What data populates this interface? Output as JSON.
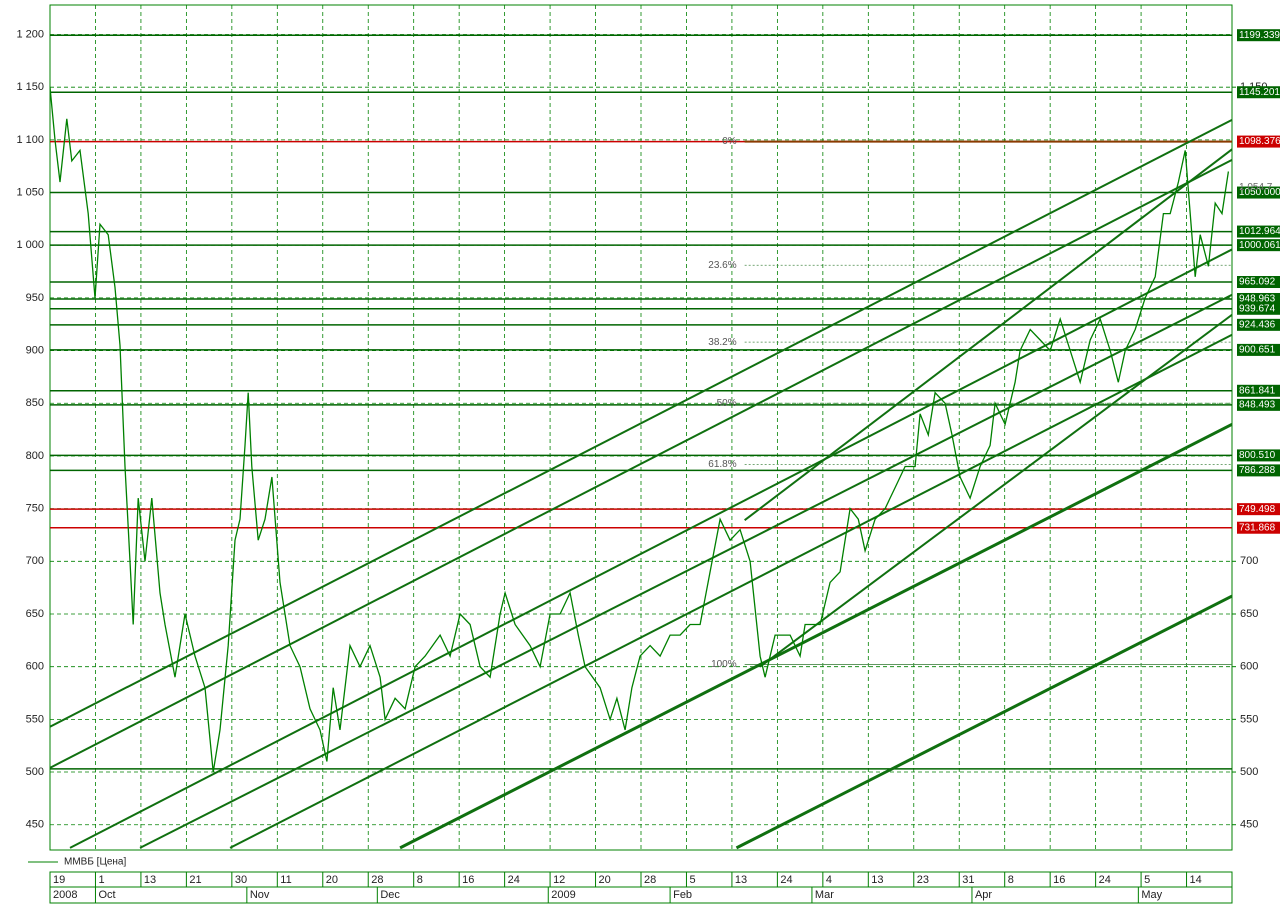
{
  "chart_data": {
    "type": "line",
    "series": [
      {
        "name": "ММВБ [Цена]",
        "color": "#008000",
        "x": [
          0,
          0.11,
          0.22,
          0.37,
          0.48,
          0.66,
          0.84,
          0.99,
          1.1,
          1.28,
          1.43,
          1.54,
          1.65,
          1.76,
          1.83,
          1.94,
          2.09,
          2.24,
          2.42,
          2.53,
          2.75,
          2.97,
          3.19,
          3.41,
          3.59,
          3.74,
          3.92,
          4.07,
          4.18,
          4.29,
          4.36,
          4.44,
          4.58,
          4.73,
          4.88,
          5.06,
          5.28,
          5.5,
          5.72,
          5.94,
          6.09,
          6.23,
          6.38,
          6.6,
          6.82,
          7.04,
          7.26,
          7.37,
          7.59,
          7.81,
          8.03,
          8.25,
          8.58,
          8.8,
          9.02,
          9.24,
          9.46,
          9.68,
          9.9,
          10.01,
          10.23,
          10.56,
          10.78,
          11,
          11.22,
          11.44,
          11.62,
          11.77,
          12.1,
          12.32,
          12.47,
          12.65,
          12.8,
          12.98,
          13.2,
          13.42,
          13.64,
          13.86,
          14.08,
          14.3,
          14.52,
          14.74,
          14.96,
          15.18,
          15.4,
          15.62,
          15.73,
          15.95,
          16.28,
          16.5,
          16.61,
          16.94,
          17.16,
          17.38,
          17.6,
          17.78,
          17.93,
          18.15,
          18.37,
          18.59,
          18.81,
          19.03,
          19.14,
          19.32,
          19.47,
          19.69,
          19.84,
          20.02,
          20.24,
          20.46,
          20.68,
          20.79,
          21.01,
          21.23,
          21.34,
          21.56,
          21.78,
          22,
          22.22,
          22.44,
          22.66,
          22.88,
          23.1,
          23.32,
          23.5,
          23.65,
          23.87,
          24.09,
          24.31,
          24.49,
          24.64,
          24.82,
          24.97,
          25.08,
          25.19,
          25.3,
          25.48,
          25.63,
          25.78,
          25.92
        ],
        "values": [
          1150,
          1100,
          1060,
          1120,
          1080,
          1090,
          1030,
          950,
          1020,
          1010,
          960,
          905,
          790,
          700,
          640,
          760,
          700,
          760,
          670,
          640,
          590,
          650,
          610,
          580,
          500,
          540,
          620,
          720,
          740,
          810,
          860,
          790,
          720,
          740,
          780,
          680,
          620,
          600,
          560,
          540,
          510,
          580,
          540,
          620,
          600,
          620,
          590,
          550,
          570,
          560,
          600,
          610,
          630,
          610,
          650,
          640,
          600,
          590,
          650,
          670,
          640,
          620,
          600,
          650,
          650,
          670,
          630,
          600,
          580,
          550,
          570,
          540,
          580,
          610,
          620,
          610,
          630,
          630,
          640,
          640,
          690,
          740,
          720,
          730,
          700,
          610,
          590,
          630,
          630,
          610,
          640,
          640,
          680,
          690,
          750,
          740,
          710,
          740,
          750,
          770,
          790,
          790,
          840,
          820,
          860,
          850,
          820,
          780,
          760,
          790,
          810,
          850,
          830,
          870,
          900,
          920,
          910,
          900,
          930,
          900,
          870,
          910,
          930,
          900,
          870,
          900,
          920,
          950,
          970,
          1030,
          1030,
          1060,
          1090,
          1030,
          970,
          1010,
          980,
          1040,
          1030,
          1070
        ]
      }
    ],
    "xlim": [
      0,
      26
    ],
    "ylim": [
      426,
      1228
    ],
    "xticks": [
      {
        "value": 0,
        "label": "19"
      },
      {
        "value": 1,
        "label": "1"
      },
      {
        "value": 2,
        "label": "13"
      },
      {
        "value": 3,
        "label": "21"
      },
      {
        "value": 4,
        "label": "30"
      },
      {
        "value": 5,
        "label": "11"
      },
      {
        "value": 6,
        "label": "20"
      },
      {
        "value": 7,
        "label": "28"
      },
      {
        "value": 8,
        "label": "8"
      },
      {
        "value": 9,
        "label": "16"
      },
      {
        "value": 10,
        "label": "24"
      },
      {
        "value": 11,
        "label": "12"
      },
      {
        "value": 12,
        "label": "20"
      },
      {
        "value": 13,
        "label": "28"
      },
      {
        "value": 14,
        "label": "5"
      },
      {
        "value": 15,
        "label": "13"
      },
      {
        "value": 16,
        "label": "24"
      },
      {
        "value": 17,
        "label": "4"
      },
      {
        "value": 18,
        "label": "13"
      },
      {
        "value": 19,
        "label": "23"
      },
      {
        "value": 20,
        "label": "31"
      },
      {
        "value": 21,
        "label": "8"
      },
      {
        "value": 22,
        "label": "16"
      },
      {
        "value": 23,
        "label": "24"
      },
      {
        "value": 24,
        "label": "5"
      },
      {
        "value": 25,
        "label": "14"
      }
    ],
    "month_ticks": [
      {
        "value": 0,
        "label": "2008"
      },
      {
        "value": 1,
        "label": "Oct"
      },
      {
        "value": 4.33,
        "label": "Nov"
      },
      {
        "value": 7.2,
        "label": "Dec"
      },
      {
        "value": 10.96,
        "label": "2009"
      },
      {
        "value": 13.64,
        "label": "Feb"
      },
      {
        "value": 16.76,
        "label": "Mar"
      },
      {
        "value": 20.28,
        "label": "Apr"
      },
      {
        "value": 23.94,
        "label": "May"
      }
    ],
    "yticks": [
      450,
      500,
      550,
      600,
      650,
      700,
      750,
      800,
      850,
      900,
      950,
      {
        "value": 1000,
        "label": "1 000"
      },
      {
        "value": 1050,
        "label": "1 050"
      },
      {
        "value": 1100,
        "label": "1 100"
      },
      {
        "value": 1150,
        "label": "1 150"
      },
      {
        "value": 1200,
        "label": "1 200"
      }
    ],
    "y2ticks": [
      450,
      500,
      550,
      600,
      650,
      700,
      {
        "value": 1150,
        "label": "1 150"
      }
    ],
    "grid": true,
    "levels": [
      {
        "value": 1199.339,
        "label": "1199.339",
        "color": "#006400"
      },
      {
        "value": 1145.201,
        "label": "1145.201",
        "color": "#006400"
      },
      {
        "value": 1098.376,
        "label": "1098.376",
        "color": "#cc0000"
      },
      {
        "value": 1050,
        "label": "1050.000",
        "color": "#006400"
      },
      {
        "value": 1012.964,
        "label": "1012.964",
        "color": "#006400"
      },
      {
        "value": 1000.061,
        "label": "1000.061",
        "color": "#006400"
      },
      {
        "value": 965.092,
        "label": "965.092",
        "color": "#006400"
      },
      {
        "value": 948.963,
        "label": "948.963",
        "color": "#006400"
      },
      {
        "value": 939.674,
        "label": "939.674",
        "color": "#006400"
      },
      {
        "value": 924.436,
        "label": "924.436",
        "color": "#006400"
      },
      {
        "value": 900.651,
        "label": "900.651",
        "color": "#006400"
      },
      {
        "value": 861.841,
        "label": "861.841",
        "color": "#006400"
      },
      {
        "value": 848.493,
        "label": "848.493",
        "color": "#006400"
      },
      {
        "value": 800.51,
        "label": "800.510",
        "color": "#006400"
      },
      {
        "value": 786.288,
        "label": "786.288",
        "color": "#006400"
      },
      {
        "value": 749.498,
        "label": "749.498",
        "color": "#cc0000"
      },
      {
        "value": 731.868,
        "label": "731.868",
        "color": "#cc0000"
      }
    ],
    "last_price": {
      "value": 1054.7,
      "label": "1 054.7"
    },
    "plain_levels": [
      503
    ],
    "fib_start": 15.28,
    "fib_levels": [
      {
        "label": "0%",
        "value": 1098.376
      },
      {
        "label": "23.6%",
        "value": 981
      },
      {
        "label": "38.2%",
        "value": 908
      },
      {
        "label": "50%",
        "value": 850
      },
      {
        "label": "61.8%",
        "value": 792
      },
      {
        "label": "100%",
        "value": 602
      }
    ],
    "trend_lines": [
      {
        "x": [
          0,
          26
        ],
        "values": [
          543,
          1119
        ]
      },
      {
        "x": [
          0,
          26
        ],
        "values": [
          504,
          1081
        ]
      },
      {
        "x": [
          0.44,
          26
        ],
        "values": [
          428,
          996
        ]
      },
      {
        "x": [
          1.98,
          26
        ],
        "values": [
          428,
          953
        ]
      },
      {
        "x": [
          3.96,
          26
        ],
        "values": [
          428,
          915
        ]
      },
      {
        "x": [
          7.7,
          26
        ],
        "values": [
          428,
          830
        ]
      },
      {
        "x": [
          15.1,
          26
        ],
        "values": [
          428,
          667
        ]
      },
      {
        "x": [
          15.28,
          26
        ],
        "values": [
          739,
          1091
        ]
      },
      {
        "x": [
          15.62,
          26
        ],
        "values": [
          600,
          934
        ]
      }
    ]
  }
}
